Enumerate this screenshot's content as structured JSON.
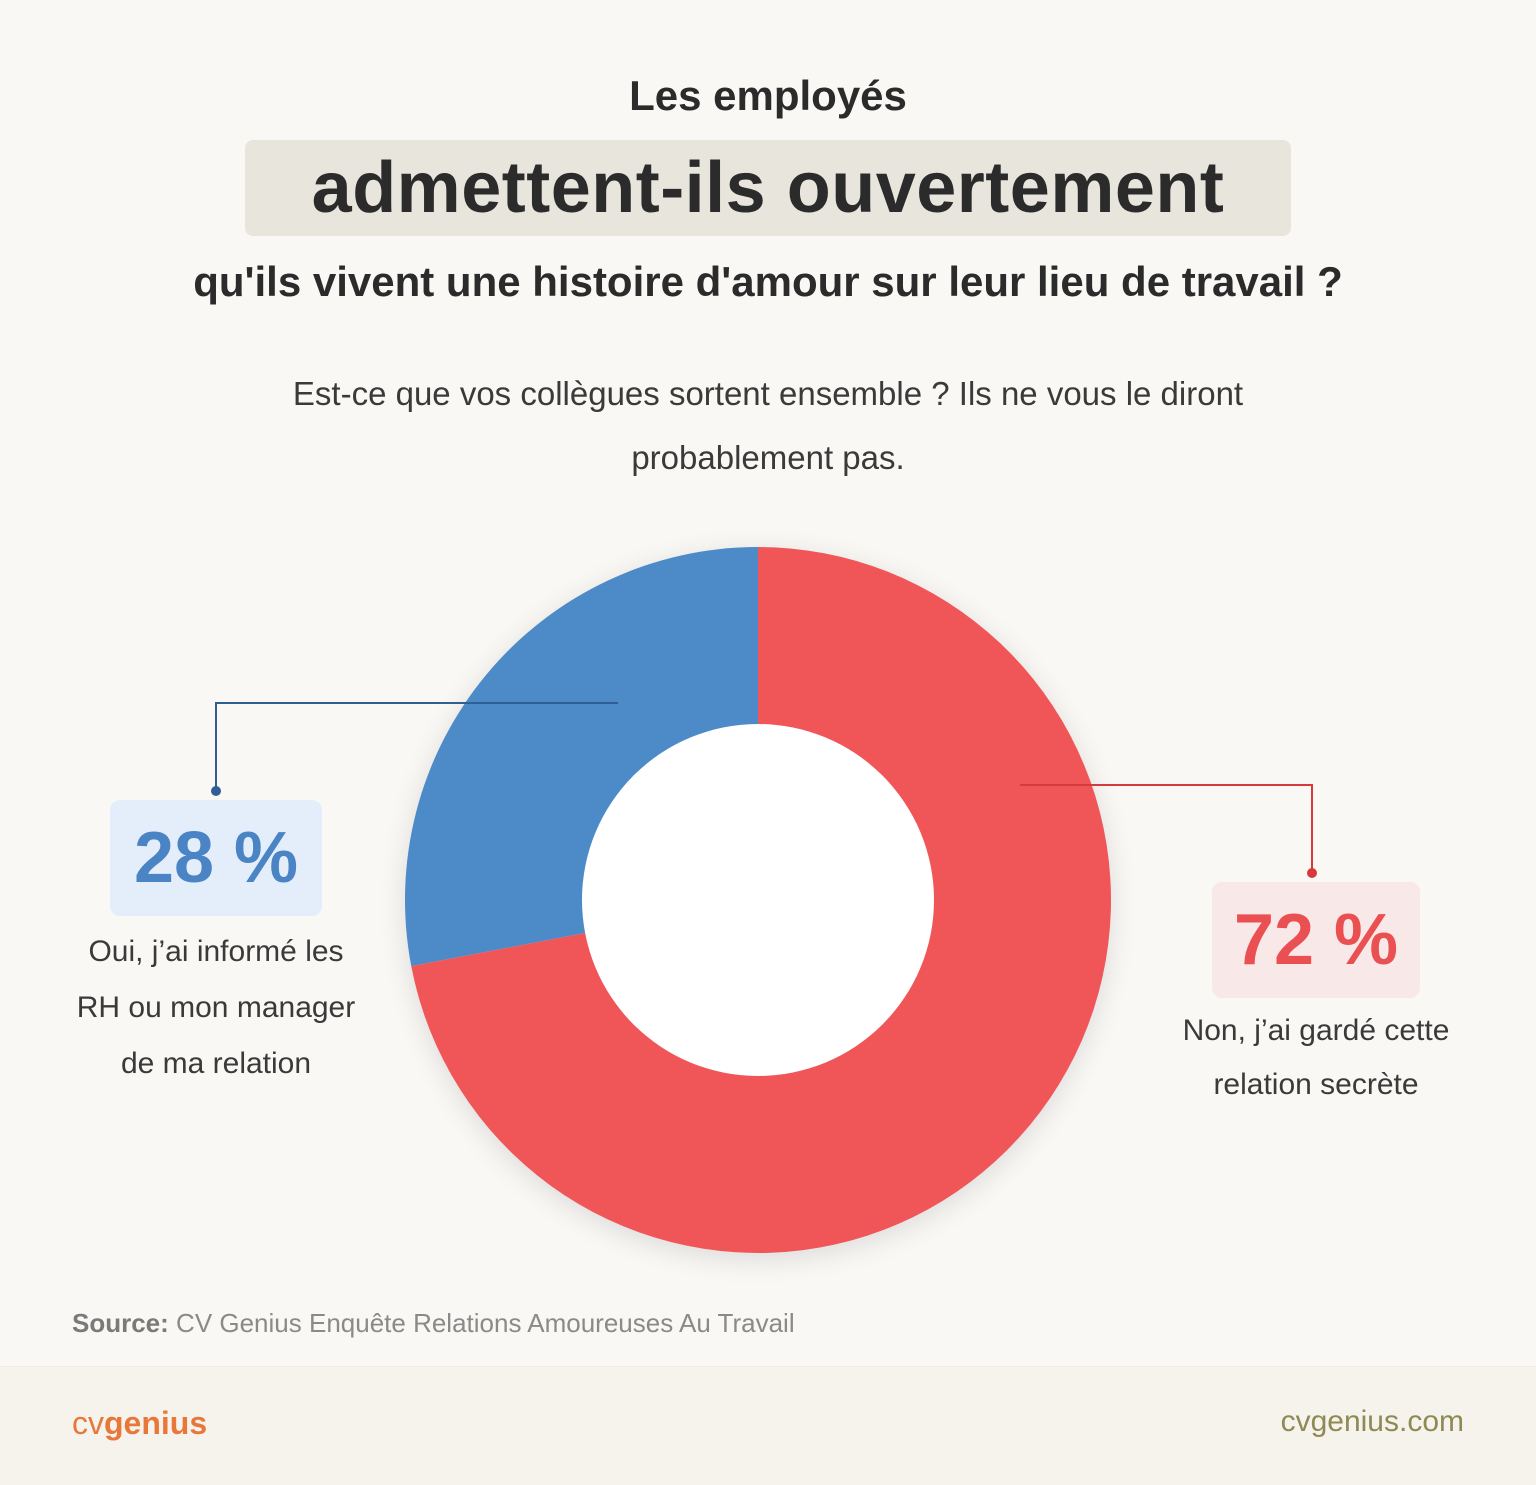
{
  "header": {
    "title_line1": "Les employés",
    "title_highlight": "admettent-ils ouvertement",
    "title_line3": "qu'ils vivent une histoire d'amour sur leur lieu de travail ?",
    "subtitle_line1": "Est-ce que vos collègues sortent ensemble ? Ils ne vous le diront",
    "subtitle_line2": "probablement pas."
  },
  "chart_data": {
    "type": "pie",
    "variant": "donut",
    "categories": [
      "Oui, j’ai informé les RH ou mon manager de ma relation",
      "Non, j’ai gardé cette relation secrète"
    ],
    "values": [
      28,
      72
    ],
    "value_labels": [
      "28 %",
      "72 %"
    ],
    "colors": [
      "#4e8bc8",
      "#f05658"
    ]
  },
  "labels": {
    "left_pct": "28 %",
    "left_line1": "Oui, j’ai informé les",
    "left_line2": "RH ou mon manager",
    "left_line3": "de ma relation",
    "right_pct": "72 %",
    "right_line1": "Non, j’ai gardé cette",
    "right_line2": "relation secrète"
  },
  "source": {
    "prefix": "Source:",
    "text": " CV Genius Enquête Relations Amoureuses Au Travail"
  },
  "footer": {
    "logo_cv": "cv",
    "logo_genius": "genius",
    "website": "cvgenius.com",
    "brand_color": "#e8783a"
  }
}
